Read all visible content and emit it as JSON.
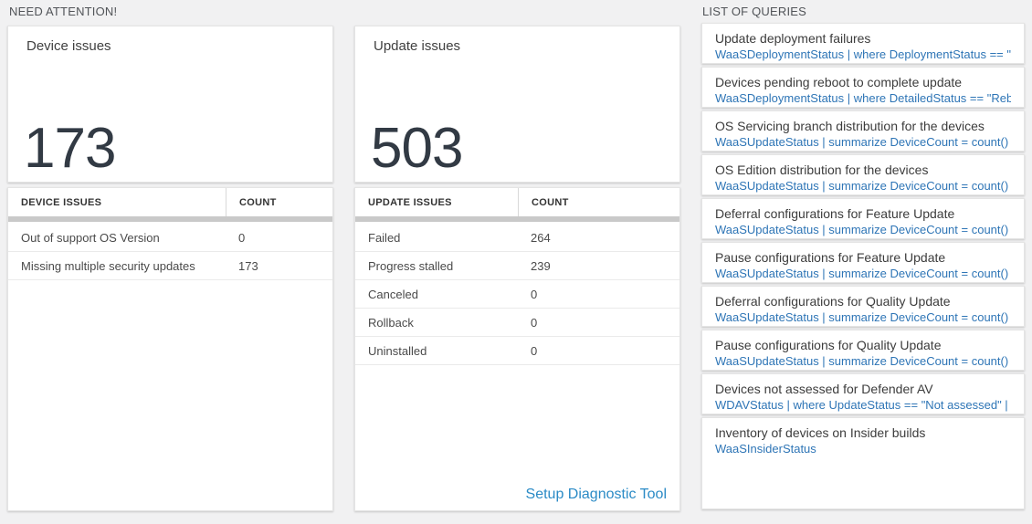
{
  "headers": {
    "need_attention": "NEED ATTENTION!",
    "list_of_queries": "LIST OF QUERIES"
  },
  "device_card": {
    "title": "Device issues",
    "count": "173",
    "table": {
      "headers": [
        "DEVICE ISSUES",
        "COUNT"
      ],
      "rows": [
        {
          "label": "Out of support OS Version",
          "count": "0"
        },
        {
          "label": "Missing multiple security updates",
          "count": "173"
        }
      ]
    }
  },
  "update_card": {
    "title": "Update issues",
    "count": "503",
    "table": {
      "headers": [
        "UPDATE ISSUES",
        "COUNT"
      ],
      "rows": [
        {
          "label": "Failed",
          "count": "264"
        },
        {
          "label": "Progress stalled",
          "count": "239"
        },
        {
          "label": "Canceled",
          "count": "0"
        },
        {
          "label": "Rollback",
          "count": "0"
        },
        {
          "label": "Uninstalled",
          "count": "0"
        }
      ]
    },
    "link_label": "Setup Diagnostic Tool"
  },
  "queries": [
    {
      "title": "Update deployment failures",
      "query": "WaaSDeploymentStatus | where DeploymentStatus == \"Failed\" |..."
    },
    {
      "title": "Devices pending reboot to complete update",
      "query": "WaaSDeploymentStatus | where DetailedStatus == \"Reboot pend..."
    },
    {
      "title": "OS Servicing branch distribution for the devices",
      "query": "WaaSUpdateStatus | summarize DeviceCount = count() by OSSer..."
    },
    {
      "title": "OS Edition distribution for the devices",
      "query": "WaaSUpdateStatus | summarize DeviceCount = count() by OSEdit..."
    },
    {
      "title": "Deferral configurations for Feature Update",
      "query": "WaaSUpdateStatus | summarize DeviceCount = count() by Featur..."
    },
    {
      "title": "Pause configurations for Feature Update",
      "query": "WaaSUpdateStatus | summarize DeviceCount = count() by Featur..."
    },
    {
      "title": "Deferral configurations for Quality Update",
      "query": "WaaSUpdateStatus | summarize DeviceCount = count() by Qualit..."
    },
    {
      "title": "Pause configurations for Quality Update",
      "query": "WaaSUpdateStatus | summarize DeviceCount = count() by Qualit..."
    },
    {
      "title": "Devices not assessed for Defender AV",
      "query": "WDAVStatus | where UpdateStatus == \"Not assessed\" | render ta..."
    },
    {
      "title": "Inventory of devices on Insider builds",
      "query": "WaaSInsiderStatus"
    }
  ],
  "colors": {
    "page_background": "#f1f1f2",
    "card_background": "#ffffff",
    "big_number_text": "#323a44",
    "query_link_blue": "#2e75b6",
    "action_link_blue": "#2b8bc6",
    "table_scrollbar": "#c9c9c9"
  }
}
